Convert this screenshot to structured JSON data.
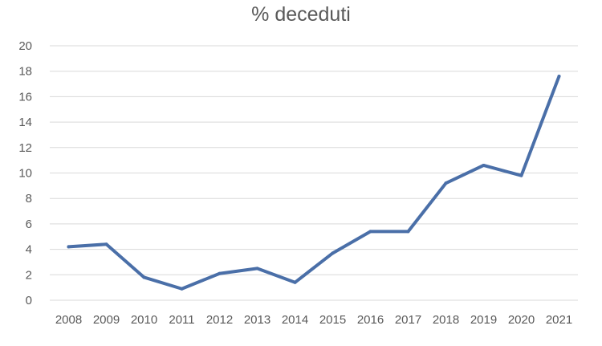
{
  "chart_data": {
    "type": "line",
    "title": "% deceduti",
    "xlabel": "",
    "ylabel": "",
    "categories": [
      "2008",
      "2009",
      "2010",
      "2011",
      "2012",
      "2013",
      "2014",
      "2015",
      "2016",
      "2017",
      "2018",
      "2019",
      "2020",
      "2021"
    ],
    "series": [
      {
        "values": [
          4.2,
          4.4,
          1.8,
          0.9,
          2.1,
          2.5,
          1.4,
          3.7,
          5.4,
          5.4,
          9.2,
          10.6,
          9.8,
          17.6
        ],
        "color": "#4a6fa8"
      }
    ],
    "ylim": [
      0,
      20
    ],
    "yticks": [
      0,
      2,
      4,
      6,
      8,
      10,
      12,
      14,
      16,
      18,
      20
    ],
    "grid": true,
    "legend": "none",
    "colors": {
      "gridline": "#d9d9d9",
      "text": "#595959"
    }
  }
}
